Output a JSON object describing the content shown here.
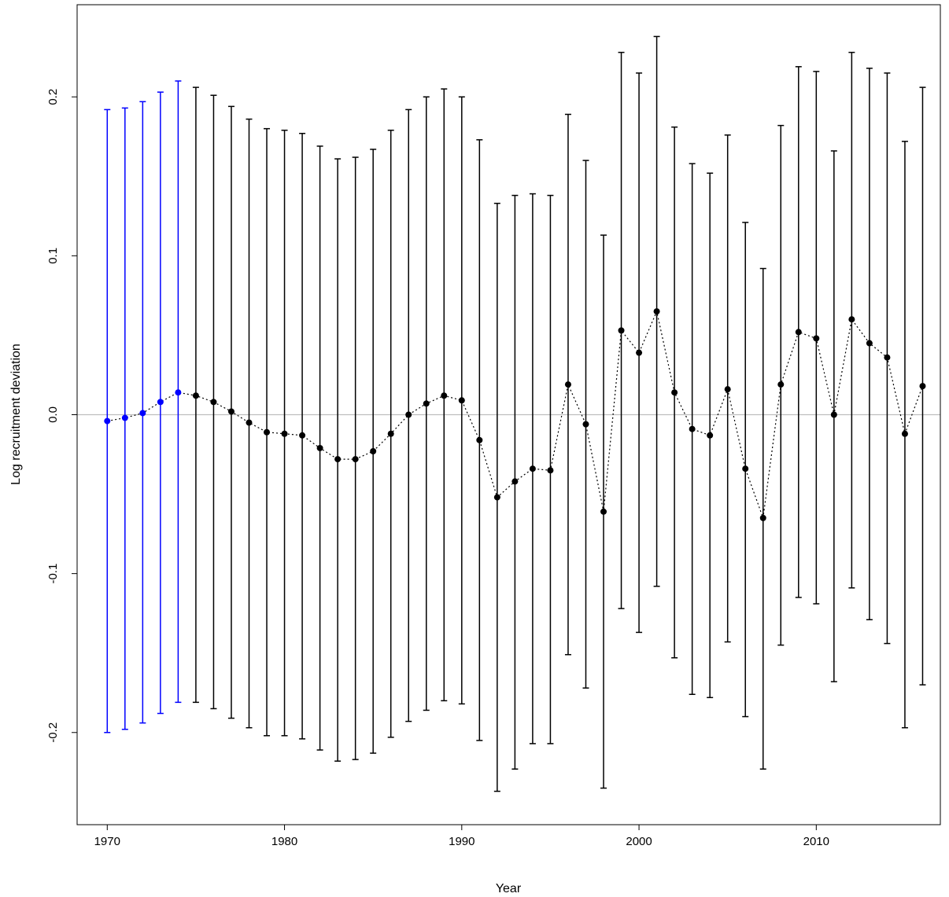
{
  "chart_data": {
    "type": "scatter",
    "title": "",
    "xlabel": "Year",
    "ylabel": "Log recruitment deviation",
    "xlim": [
      1968.3,
      1977.0
    ],
    "x_range": [
      1968.3,
      2017.0
    ],
    "ylim": [
      -0.258,
      0.258
    ],
    "x_ticks": [
      1970,
      1980,
      1990,
      2000,
      2010
    ],
    "y_ticks": [
      -0.2,
      -0.1,
      0.0,
      0.1,
      0.2
    ],
    "y_tick_labels": [
      "-0.2",
      "-0.1",
      "0.0",
      "0.1",
      "0.2"
    ],
    "reference_line": {
      "y": 0,
      "color": "#bebebe"
    },
    "grid": false,
    "connector": "dotted",
    "series": [
      {
        "color": "#0000ff",
        "points": [
          {
            "x": 1970,
            "y": -0.004,
            "lower": -0.2,
            "upper": 0.192
          },
          {
            "x": 1971,
            "y": -0.002,
            "lower": -0.198,
            "upper": 0.193
          },
          {
            "x": 1972,
            "y": 0.001,
            "lower": -0.194,
            "upper": 0.197
          },
          {
            "x": 1973,
            "y": 0.008,
            "lower": -0.188,
            "upper": 0.203
          },
          {
            "x": 1974,
            "y": 0.014,
            "lower": -0.181,
            "upper": 0.21
          }
        ]
      },
      {
        "color": "#000000",
        "points": [
          {
            "x": 1975,
            "y": 0.012,
            "lower": -0.181,
            "upper": 0.206
          },
          {
            "x": 1976,
            "y": 0.008,
            "lower": -0.185,
            "upper": 0.201
          },
          {
            "x": 1977,
            "y": 0.002,
            "lower": -0.191,
            "upper": 0.194
          },
          {
            "x": 1978,
            "y": -0.005,
            "lower": -0.197,
            "upper": 0.186
          },
          {
            "x": 1979,
            "y": -0.011,
            "lower": -0.202,
            "upper": 0.18
          },
          {
            "x": 1980,
            "y": -0.012,
            "lower": -0.202,
            "upper": 0.179
          },
          {
            "x": 1981,
            "y": -0.013,
            "lower": -0.204,
            "upper": 0.177
          },
          {
            "x": 1982,
            "y": -0.021,
            "lower": -0.211,
            "upper": 0.169
          },
          {
            "x": 1983,
            "y": -0.028,
            "lower": -0.218,
            "upper": 0.161
          },
          {
            "x": 1984,
            "y": -0.028,
            "lower": -0.217,
            "upper": 0.162
          },
          {
            "x": 1985,
            "y": -0.023,
            "lower": -0.213,
            "upper": 0.167
          },
          {
            "x": 1986,
            "y": -0.012,
            "lower": -0.203,
            "upper": 0.179
          },
          {
            "x": 1987,
            "y": 0.0,
            "lower": -0.193,
            "upper": 0.192
          },
          {
            "x": 1988,
            "y": 0.007,
            "lower": -0.186,
            "upper": 0.2
          },
          {
            "x": 1989,
            "y": 0.012,
            "lower": -0.18,
            "upper": 0.205
          },
          {
            "x": 1990,
            "y": 0.009,
            "lower": -0.182,
            "upper": 0.2
          },
          {
            "x": 1991,
            "y": -0.016,
            "lower": -0.205,
            "upper": 0.173
          },
          {
            "x": 1992,
            "y": -0.052,
            "lower": -0.237,
            "upper": 0.133
          },
          {
            "x": 1993,
            "y": -0.042,
            "lower": -0.223,
            "upper": 0.138
          },
          {
            "x": 1994,
            "y": -0.034,
            "lower": -0.207,
            "upper": 0.139
          },
          {
            "x": 1995,
            "y": -0.035,
            "lower": -0.207,
            "upper": 0.138
          },
          {
            "x": 1996,
            "y": 0.019,
            "lower": -0.151,
            "upper": 0.189
          },
          {
            "x": 1997,
            "y": -0.006,
            "lower": -0.172,
            "upper": 0.16
          },
          {
            "x": 1998,
            "y": -0.061,
            "lower": -0.235,
            "upper": 0.113
          },
          {
            "x": 1999,
            "y": 0.053,
            "lower": -0.122,
            "upper": 0.228
          },
          {
            "x": 2000,
            "y": 0.039,
            "lower": -0.137,
            "upper": 0.215
          },
          {
            "x": 2001,
            "y": 0.065,
            "lower": -0.108,
            "upper": 0.238
          },
          {
            "x": 2002,
            "y": 0.014,
            "lower": -0.153,
            "upper": 0.181
          },
          {
            "x": 2003,
            "y": -0.009,
            "lower": -0.176,
            "upper": 0.158
          },
          {
            "x": 2004,
            "y": -0.013,
            "lower": -0.178,
            "upper": 0.152
          },
          {
            "x": 2005,
            "y": 0.016,
            "lower": -0.143,
            "upper": 0.176
          },
          {
            "x": 2006,
            "y": -0.034,
            "lower": -0.19,
            "upper": 0.121
          },
          {
            "x": 2007,
            "y": -0.065,
            "lower": -0.223,
            "upper": 0.092
          },
          {
            "x": 2008,
            "y": 0.019,
            "lower": -0.145,
            "upper": 0.182
          },
          {
            "x": 2009,
            "y": 0.052,
            "lower": -0.115,
            "upper": 0.219
          },
          {
            "x": 2010,
            "y": 0.048,
            "lower": -0.119,
            "upper": 0.216
          },
          {
            "x": 2011,
            "y": 0.0,
            "lower": -0.168,
            "upper": 0.166
          },
          {
            "x": 2012,
            "y": 0.06,
            "lower": -0.109,
            "upper": 0.228
          },
          {
            "x": 2013,
            "y": 0.045,
            "lower": -0.129,
            "upper": 0.218
          },
          {
            "x": 2014,
            "y": 0.036,
            "lower": -0.144,
            "upper": 0.215
          },
          {
            "x": 2015,
            "y": -0.012,
            "lower": -0.197,
            "upper": 0.172
          },
          {
            "x": 2016,
            "y": 0.018,
            "lower": -0.17,
            "upper": 0.206
          }
        ]
      }
    ]
  }
}
